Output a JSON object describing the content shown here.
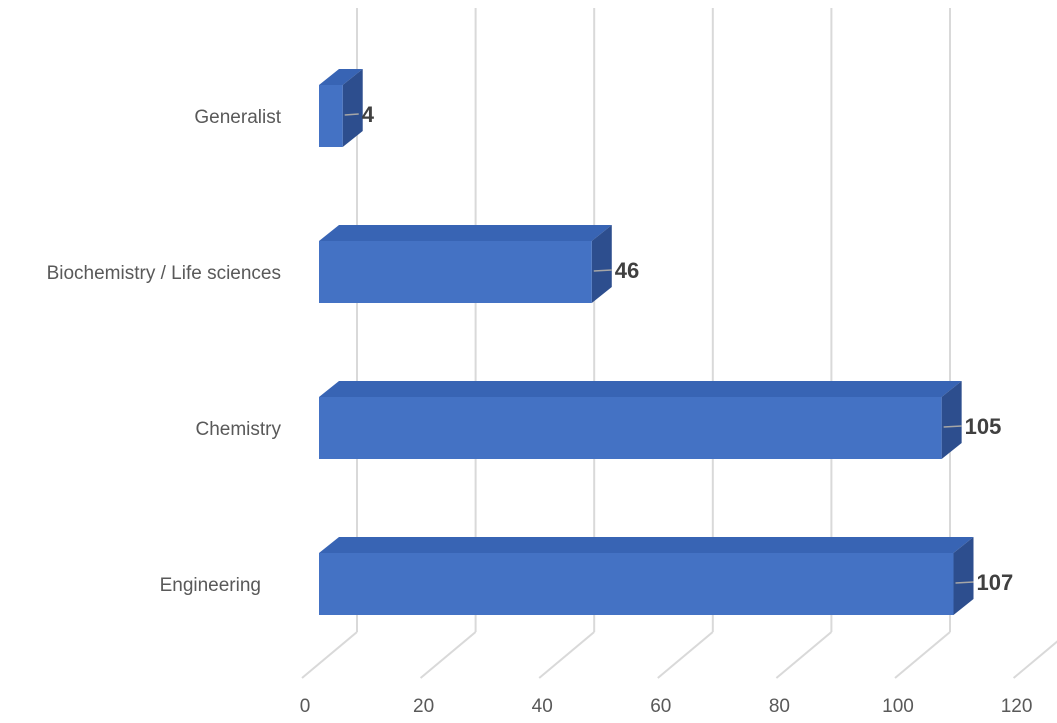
{
  "chart_data": {
    "type": "bar",
    "orientation": "horizontal",
    "style": "3d",
    "categories": [
      "Generalist",
      "Biochemistry / Life sciences",
      "Chemistry",
      "Engineering"
    ],
    "values": [
      4,
      46,
      105,
      107
    ],
    "data_labels": [
      "4",
      "46",
      "105",
      "107"
    ],
    "x_ticks": [
      "0",
      "20",
      "40",
      "60",
      "80",
      "100",
      "120"
    ],
    "xlim": [
      0,
      120
    ],
    "grid": true,
    "legend": "none",
    "colors": {
      "bar_front": "#4472C4",
      "bar_top": "#3864B4",
      "bar_side": "#2D4E8E",
      "grid": "#D9D9D9",
      "leader": "#A6A6A6"
    }
  }
}
